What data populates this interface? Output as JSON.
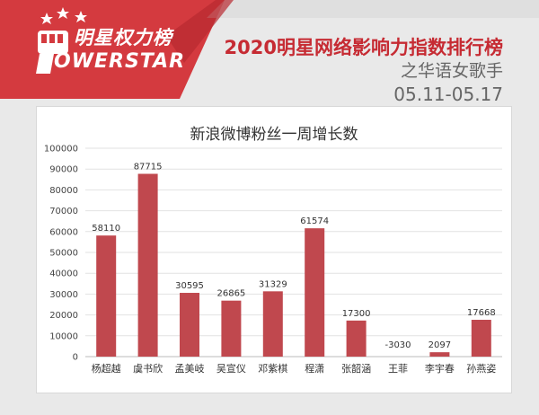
{
  "branding": {
    "logo_cn": "明星权力榜",
    "logo_en": "OWERSTAR"
  },
  "header": {
    "title": "2020明星网络影响力指数排行榜",
    "subtitle": "之华语女歌手",
    "date_range": "05.11-05.17"
  },
  "colors": {
    "brand_red": "#c62b33",
    "bar": "#c0484e"
  },
  "chart_data": {
    "type": "bar",
    "title": "新浪微博粉丝一周增长数",
    "categories": [
      "杨超越",
      "虞书欣",
      "孟美岐",
      "吴宣仪",
      "邓紫棋",
      "程潇",
      "张韶涵",
      "王菲",
      "李宇春",
      "孙燕姿"
    ],
    "values": [
      58110,
      87715,
      30595,
      26865,
      31329,
      61574,
      17300,
      -3030,
      2097,
      17668
    ],
    "value_labels": [
      "58110",
      "87715",
      "30595",
      "26865",
      "31329",
      "61574",
      "17300",
      "-3030",
      "2097",
      "17668"
    ],
    "ylim": [
      0,
      100000
    ],
    "yticks": [
      0,
      10000,
      20000,
      30000,
      40000,
      50000,
      60000,
      70000,
      80000,
      90000,
      100000
    ],
    "grid": true,
    "xlabel": "",
    "ylabel": ""
  }
}
